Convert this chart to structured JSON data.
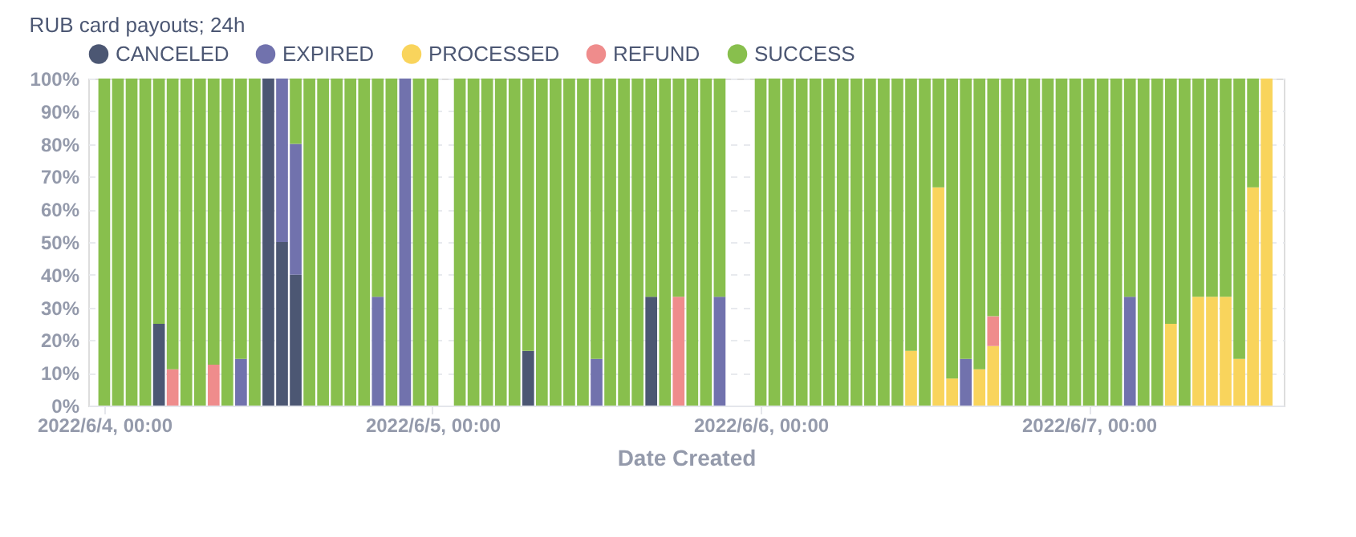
{
  "chart_data": {
    "type": "bar",
    "title": "RUB card payouts; 24h",
    "xlabel": "Date Created",
    "stacked": true,
    "legend": "top left",
    "grid": "y",
    "x": [
      "2022-06-04T00:00",
      "2022-06-04T01:00",
      "2022-06-04T02:00",
      "2022-06-04T03:00",
      "2022-06-04T04:00",
      "2022-06-04T05:00",
      "2022-06-04T06:00",
      "2022-06-04T07:00",
      "2022-06-04T08:00",
      "2022-06-04T09:00",
      "2022-06-04T10:00",
      "2022-06-04T11:00",
      "2022-06-04T12:00",
      "2022-06-04T13:00",
      "2022-06-04T14:00",
      "2022-06-04T15:00",
      "2022-06-04T16:00",
      "2022-06-04T17:00",
      "2022-06-04T18:00",
      "2022-06-04T19:00",
      "2022-06-04T20:00",
      "2022-06-04T21:00",
      "2022-06-04T22:00",
      "2022-06-04T23:00",
      "2022-06-05T00:00",
      "2022-06-05T02:00",
      "2022-06-05T03:00",
      "2022-06-05T04:00",
      "2022-06-05T05:00",
      "2022-06-05T06:00",
      "2022-06-05T07:00",
      "2022-06-05T08:00",
      "2022-06-05T09:00",
      "2022-06-05T10:00",
      "2022-06-05T11:00",
      "2022-06-05T12:00",
      "2022-06-05T13:00",
      "2022-06-05T14:00",
      "2022-06-05T15:00",
      "2022-06-05T16:00",
      "2022-06-05T17:00",
      "2022-06-05T18:00",
      "2022-06-05T19:00",
      "2022-06-05T20:00",
      "2022-06-05T21:00",
      "2022-06-06T00:00",
      "2022-06-06T01:00",
      "2022-06-06T02:00",
      "2022-06-06T03:00",
      "2022-06-06T04:00",
      "2022-06-06T05:00",
      "2022-06-06T06:00",
      "2022-06-06T07:00",
      "2022-06-06T08:00",
      "2022-06-06T09:00",
      "2022-06-06T10:00",
      "2022-06-06T11:00",
      "2022-06-06T12:00",
      "2022-06-06T13:00",
      "2022-06-06T14:00",
      "2022-06-06T15:00",
      "2022-06-06T16:00",
      "2022-06-06T17:00",
      "2022-06-06T18:00",
      "2022-06-06T19:00",
      "2022-06-06T20:00",
      "2022-06-06T21:00",
      "2022-06-06T22:00",
      "2022-06-06T23:00",
      "2022-06-07T00:00",
      "2022-06-07T01:00",
      "2022-06-07T02:00",
      "2022-06-07T03:00",
      "2022-06-07T04:00",
      "2022-06-07T05:00",
      "2022-06-07T06:00",
      "2022-06-07T07:00",
      "2022-06-07T08:00",
      "2022-06-07T09:00",
      "2022-06-07T10:00",
      "2022-06-07T11:00",
      "2022-06-07T12:00",
      "2022-06-07T13:00"
    ],
    "xlim": [
      "2022-06-03T23:25",
      "2022-06-07T13:40"
    ],
    "xticks": [
      {
        "value": "2022-06-04T00:00",
        "label": "2022/6/4, 00:00"
      },
      {
        "value": "2022-06-05T00:00",
        "label": "2022/6/5, 00:00"
      },
      {
        "value": "2022-06-06T00:00",
        "label": "2022/6/6, 00:00"
      },
      {
        "value": "2022-06-07T00:00",
        "label": "2022/6/7, 00:00"
      }
    ],
    "ylim": [
      0,
      100
    ],
    "yticks": [
      {
        "value": 0,
        "label": "0%"
      },
      {
        "value": 10,
        "label": "10%"
      },
      {
        "value": 20,
        "label": "20%"
      },
      {
        "value": 30,
        "label": "30%"
      },
      {
        "value": 40,
        "label": "40%"
      },
      {
        "value": 50,
        "label": "50%"
      },
      {
        "value": 60,
        "label": "60%"
      },
      {
        "value": 70,
        "label": "70%"
      },
      {
        "value": 80,
        "label": "80%"
      },
      {
        "value": 90,
        "label": "90%"
      },
      {
        "value": 100,
        "label": "100%"
      }
    ],
    "series": [
      {
        "name": "CANCELED",
        "color": "#4c5773",
        "values": [
          null,
          null,
          null,
          null,
          25,
          null,
          null,
          null,
          null,
          null,
          null,
          null,
          100,
          50,
          40,
          null,
          null,
          null,
          null,
          null,
          null,
          null,
          null,
          null,
          null,
          null,
          null,
          null,
          null,
          null,
          16.7,
          null,
          null,
          null,
          null,
          null,
          null,
          null,
          null,
          33.3,
          null,
          null,
          null,
          null,
          null,
          null,
          null,
          null,
          null,
          null,
          null,
          null,
          null,
          null,
          null,
          null,
          null,
          null,
          null,
          null,
          null,
          null,
          null,
          null,
          null,
          null,
          null,
          null,
          null,
          null,
          null,
          null,
          null,
          null,
          null,
          null,
          null,
          null,
          null,
          null,
          null,
          null,
          null
        ]
      },
      {
        "name": "EXPIRED",
        "color": "#7172ad",
        "values": [
          null,
          null,
          null,
          null,
          null,
          null,
          null,
          null,
          null,
          null,
          14.3,
          null,
          null,
          50,
          40,
          null,
          null,
          null,
          null,
          null,
          33.3,
          null,
          100,
          null,
          null,
          null,
          null,
          null,
          null,
          null,
          null,
          null,
          null,
          null,
          null,
          14.3,
          null,
          null,
          null,
          null,
          null,
          null,
          null,
          null,
          33.3,
          null,
          null,
          null,
          null,
          null,
          null,
          null,
          null,
          null,
          null,
          null,
          null,
          null,
          null,
          null,
          14.3,
          null,
          null,
          null,
          null,
          null,
          null,
          null,
          null,
          null,
          null,
          null,
          33.3,
          null,
          null,
          null,
          null,
          null,
          null,
          null,
          null,
          null,
          null
        ]
      },
      {
        "name": "PROCESSED",
        "color": "#f9d45c",
        "values": [
          null,
          null,
          null,
          null,
          null,
          null,
          null,
          null,
          null,
          null,
          null,
          null,
          null,
          null,
          null,
          null,
          null,
          null,
          null,
          null,
          null,
          null,
          null,
          null,
          null,
          null,
          null,
          null,
          null,
          null,
          null,
          null,
          null,
          null,
          null,
          null,
          null,
          null,
          null,
          null,
          null,
          null,
          null,
          null,
          null,
          null,
          null,
          null,
          null,
          null,
          null,
          null,
          null,
          null,
          null,
          null,
          16.7,
          null,
          66.7,
          8.3,
          null,
          11.1,
          18.2,
          null,
          null,
          null,
          null,
          null,
          null,
          null,
          null,
          null,
          null,
          null,
          null,
          25,
          null,
          33.3,
          33.3,
          33.3,
          14.3,
          66.7,
          100
        ]
      },
      {
        "name": "REFUND",
        "color": "#ef8c8c",
        "values": [
          null,
          null,
          null,
          null,
          null,
          11.1,
          null,
          null,
          12.5,
          null,
          null,
          null,
          null,
          null,
          null,
          null,
          null,
          null,
          null,
          null,
          null,
          null,
          null,
          null,
          null,
          null,
          null,
          null,
          null,
          null,
          null,
          null,
          null,
          null,
          null,
          null,
          null,
          null,
          null,
          null,
          null,
          33.3,
          null,
          null,
          null,
          null,
          null,
          null,
          null,
          null,
          null,
          null,
          null,
          null,
          null,
          null,
          null,
          null,
          null,
          null,
          null,
          null,
          9.1,
          null,
          null,
          null,
          null,
          null,
          null,
          null,
          null,
          null,
          null,
          null,
          null,
          null,
          null,
          null,
          null,
          null,
          null,
          null,
          null
        ]
      },
      {
        "name": "SUCCESS",
        "color": "#88bf4d",
        "values": [
          100,
          100,
          100,
          100,
          75,
          88.9,
          100,
          100,
          87.5,
          100,
          85.7,
          100,
          null,
          null,
          20,
          100,
          100,
          100,
          100,
          100,
          66.7,
          100,
          null,
          100,
          100,
          100,
          100,
          100,
          100,
          100,
          83.3,
          100,
          100,
          100,
          100,
          85.7,
          100,
          100,
          100,
          66.7,
          100,
          66.7,
          100,
          100,
          66.7,
          100,
          100,
          100,
          100,
          100,
          100,
          100,
          100,
          100,
          100,
          100,
          83.3,
          100,
          33.3,
          91.7,
          85.7,
          88.9,
          72.7,
          100,
          100,
          100,
          100,
          100,
          100,
          100,
          100,
          100,
          66.7,
          100,
          100,
          75,
          100,
          66.7,
          66.7,
          66.7,
          85.7,
          33.3,
          null
        ]
      }
    ]
  }
}
